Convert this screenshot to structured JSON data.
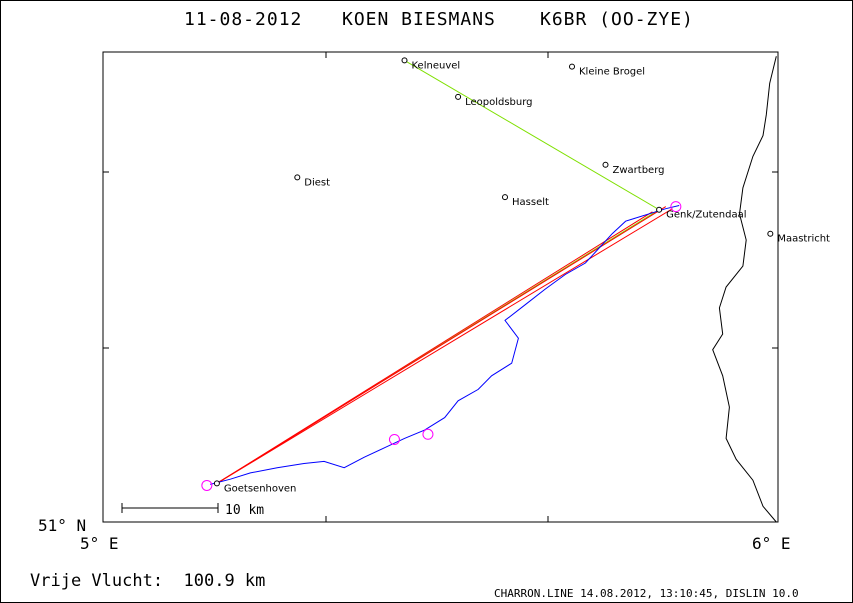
{
  "header": {
    "date": "11-08-2012",
    "pilot": "KOEN BIESMANS",
    "glider": "K6BR (OO-ZYE)"
  },
  "axes": {
    "x_left_label": "5° E",
    "x_right_label": "6° E",
    "y_bottom_label": "51° N",
    "lon_range": [
      5.0,
      6.0
    ],
    "lat_range": [
      51.0,
      51.45
    ]
  },
  "scale_bar": {
    "label": "10 km",
    "km": 10
  },
  "footer": {
    "distance": "Vrije Vlucht:  100.9 km",
    "software": "CHARRON.LINE 14.08.2012, 13:10:45, DISLIN 10.0"
  },
  "colors": {
    "frame": "#000000",
    "task_line": "#7fe000",
    "flight_track": "#0000ff",
    "legs": "#ff0000",
    "markers": "#ff00ff",
    "border": "#000000"
  },
  "places": [
    {
      "name": "Kelneuvel",
      "lon": 5.45,
      "lat": 51.442
    },
    {
      "name": "Kleine Brogel",
      "lon": 5.7,
      "lat": 51.436
    },
    {
      "name": "Leopoldsburg",
      "lon": 5.53,
      "lat": 51.407
    },
    {
      "name": "Zwartberg",
      "lon": 5.75,
      "lat": 51.342
    },
    {
      "name": "Diest",
      "lon": 5.29,
      "lat": 51.33
    },
    {
      "name": "Hasselt",
      "lon": 5.6,
      "lat": 51.311
    },
    {
      "name": "Genk/Zutendaal",
      "lon": 5.83,
      "lat": 51.299
    },
    {
      "name": "Maastricht",
      "lon": 5.996,
      "lat": 51.276
    },
    {
      "name": "Goetsenhoven",
      "lon": 5.17,
      "lat": 51.037
    }
  ],
  "flight_route": [
    {
      "lon": 5.45,
      "lat": 51.442
    },
    {
      "lon": 5.83,
      "lat": 51.299
    },
    {
      "lon": 5.17,
      "lat": 51.037
    }
  ],
  "legs": [
    [
      {
        "lon": 5.17,
        "lat": 51.037
      },
      {
        "lon": 5.82,
        "lat": 51.297
      }
    ],
    [
      {
        "lon": 5.17,
        "lat": 51.037
      },
      {
        "lon": 5.84,
        "lat": 51.302
      }
    ],
    [
      {
        "lon": 5.17,
        "lat": 51.037
      },
      {
        "lon": 5.85,
        "lat": 51.3
      }
    ]
  ],
  "turnpoints": [
    {
      "lon": 5.155,
      "lat": 51.035
    },
    {
      "lon": 5.435,
      "lat": 51.079
    },
    {
      "lon": 5.485,
      "lat": 51.084
    },
    {
      "lon": 5.855,
      "lat": 51.302
    }
  ],
  "track": [
    {
      "lon": 5.16,
      "lat": 51.036
    },
    {
      "lon": 5.19,
      "lat": 51.041
    },
    {
      "lon": 5.22,
      "lat": 51.047
    },
    {
      "lon": 5.26,
      "lat": 51.052
    },
    {
      "lon": 5.3,
      "lat": 51.056
    },
    {
      "lon": 5.33,
      "lat": 51.058
    },
    {
      "lon": 5.36,
      "lat": 51.052
    },
    {
      "lon": 5.39,
      "lat": 51.062
    },
    {
      "lon": 5.42,
      "lat": 51.071
    },
    {
      "lon": 5.45,
      "lat": 51.08
    },
    {
      "lon": 5.48,
      "lat": 51.088
    },
    {
      "lon": 5.51,
      "lat": 51.1
    },
    {
      "lon": 5.53,
      "lat": 51.116
    },
    {
      "lon": 5.56,
      "lat": 51.127
    },
    {
      "lon": 5.58,
      "lat": 51.14
    },
    {
      "lon": 5.61,
      "lat": 51.152
    },
    {
      "lon": 5.62,
      "lat": 51.176
    },
    {
      "lon": 5.6,
      "lat": 51.193
    },
    {
      "lon": 5.63,
      "lat": 51.208
    },
    {
      "lon": 5.66,
      "lat": 51.223
    },
    {
      "lon": 5.69,
      "lat": 51.237
    },
    {
      "lon": 5.72,
      "lat": 51.248
    },
    {
      "lon": 5.74,
      "lat": 51.262
    },
    {
      "lon": 5.76,
      "lat": 51.276
    },
    {
      "lon": 5.78,
      "lat": 51.288
    },
    {
      "lon": 5.8,
      "lat": 51.292
    },
    {
      "lon": 5.82,
      "lat": 51.296
    },
    {
      "lon": 5.84,
      "lat": 51.3
    },
    {
      "lon": 5.86,
      "lat": 51.303
    }
  ],
  "border_line": [
    {
      "lon": 6.005,
      "lat": 51.446
    },
    {
      "lon": 5.995,
      "lat": 51.42
    },
    {
      "lon": 5.99,
      "lat": 51.39
    },
    {
      "lon": 5.985,
      "lat": 51.37
    },
    {
      "lon": 5.97,
      "lat": 51.35
    },
    {
      "lon": 5.955,
      "lat": 51.32
    },
    {
      "lon": 5.95,
      "lat": 51.295
    },
    {
      "lon": 5.96,
      "lat": 51.27
    },
    {
      "lon": 5.955,
      "lat": 51.245
    },
    {
      "lon": 5.93,
      "lat": 51.225
    },
    {
      "lon": 5.92,
      "lat": 51.205
    },
    {
      "lon": 5.925,
      "lat": 51.18
    },
    {
      "lon": 5.91,
      "lat": 51.165
    },
    {
      "lon": 5.925,
      "lat": 51.14
    },
    {
      "lon": 5.935,
      "lat": 51.11
    },
    {
      "lon": 5.93,
      "lat": 51.08
    },
    {
      "lon": 5.945,
      "lat": 51.06
    },
    {
      "lon": 5.97,
      "lat": 51.04
    },
    {
      "lon": 5.985,
      "lat": 51.015
    },
    {
      "lon": 6.005,
      "lat": 51.0
    }
  ]
}
